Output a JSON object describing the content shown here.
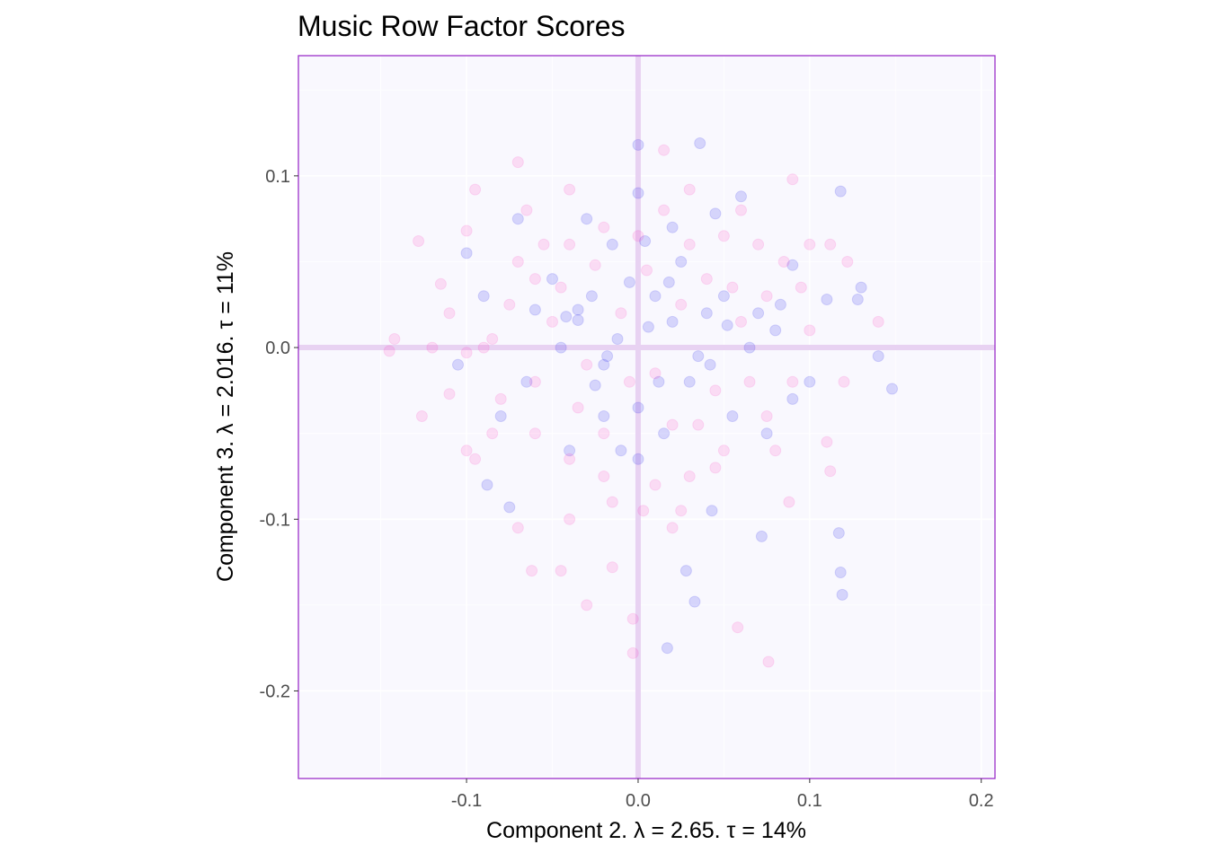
{
  "chart_data": {
    "type": "scatter",
    "title": "Music Row Factor Scores",
    "xlabel": "Component 2.   λ = 2.65.  τ = 14%",
    "ylabel": "Component 3.   λ = 2.016.  τ = 11%",
    "xlim": [
      -0.198,
      0.208
    ],
    "ylim": [
      -0.251,
      0.17
    ],
    "x_ticks": [
      -0.1,
      0.0,
      0.1,
      0.2
    ],
    "x_tick_labels": [
      "-0.1",
      "0.0",
      "0.1",
      "0.2"
    ],
    "y_ticks": [
      -0.2,
      -0.1,
      0.0,
      0.1
    ],
    "y_tick_labels": [
      "-0.2",
      "-0.1",
      "0.0",
      "0.1"
    ],
    "grid": true,
    "legend": "none",
    "colors": {
      "panel_background": "#f9f8fe",
      "panel_border": "#9b30c9",
      "gridline": "#ffffff",
      "origin_lines": "#e8d2f2",
      "series_blue": "#3333ee",
      "series_pink": "#ff33bb"
    },
    "series": [
      {
        "color": "#3333ee",
        "opacity": 0.18,
        "points": [
          [
            0.0,
            0.118
          ],
          [
            0.036,
            0.119
          ],
          [
            0.118,
            0.091
          ],
          [
            0.042,
            -0.01
          ],
          [
            -0.035,
            0.016
          ],
          [
            -0.06,
            0.022
          ],
          [
            -0.02,
            -0.01
          ],
          [
            0.01,
            0.03
          ],
          [
            0.05,
            0.03
          ],
          [
            0.07,
            0.02
          ],
          [
            -0.08,
            -0.04
          ],
          [
            -0.09,
            0.03
          ],
          [
            0.09,
            -0.03
          ],
          [
            0.13,
            0.035
          ],
          [
            0.14,
            -0.005
          ],
          [
            0.148,
            -0.024
          ],
          [
            0.117,
            -0.108
          ],
          [
            0.118,
            -0.131
          ],
          [
            0.119,
            -0.144
          ],
          [
            0.072,
            -0.11
          ],
          [
            0.028,
            -0.13
          ],
          [
            0.033,
            -0.148
          ],
          [
            0.017,
            -0.175
          ],
          [
            0.043,
            -0.095
          ],
          [
            0.0,
            -0.065
          ],
          [
            -0.02,
            -0.04
          ],
          [
            -0.04,
            -0.06
          ],
          [
            -0.075,
            -0.093
          ],
          [
            -0.088,
            -0.08
          ],
          [
            -0.1,
            0.055
          ],
          [
            -0.07,
            0.075
          ],
          [
            -0.03,
            0.075
          ],
          [
            0.0,
            0.09
          ],
          [
            0.02,
            0.07
          ],
          [
            0.045,
            0.078
          ],
          [
            0.06,
            0.088
          ],
          [
            0.09,
            0.048
          ],
          [
            0.11,
            0.028
          ],
          [
            0.128,
            0.028
          ],
          [
            0.083,
            0.025
          ],
          [
            -0.012,
            0.005
          ],
          [
            -0.018,
            -0.005
          ],
          [
            0.012,
            -0.02
          ],
          [
            0.02,
            0.015
          ],
          [
            -0.035,
            0.022
          ],
          [
            -0.005,
            0.038
          ],
          [
            0.03,
            -0.02
          ],
          [
            0.055,
            -0.04
          ],
          [
            0.065,
            0.0
          ],
          [
            -0.05,
            0.04
          ],
          [
            0.025,
            0.05
          ],
          [
            -0.045,
            0.0
          ],
          [
            0.004,
            0.062
          ],
          [
            -0.015,
            0.06
          ],
          [
            0.04,
            0.02
          ],
          [
            -0.027,
            0.03
          ],
          [
            0.075,
            -0.05
          ],
          [
            -0.065,
            -0.02
          ],
          [
            0.08,
            0.01
          ],
          [
            -0.105,
            -0.01
          ],
          [
            0.1,
            -0.02
          ],
          [
            0.015,
            -0.05
          ],
          [
            -0.01,
            -0.06
          ],
          [
            0.035,
            -0.005
          ],
          [
            -0.025,
            -0.022
          ],
          [
            0.006,
            0.012
          ],
          [
            -0.042,
            0.018
          ],
          [
            0.052,
            0.013
          ],
          [
            0.018,
            0.038
          ],
          [
            0.0,
            -0.035
          ]
        ]
      },
      {
        "color": "#ff33bb",
        "opacity": 0.15,
        "points": [
          [
            0.015,
            0.115
          ],
          [
            -0.07,
            0.108
          ],
          [
            -0.128,
            0.062
          ],
          [
            -0.142,
            0.005
          ],
          [
            -0.145,
            -0.002
          ],
          [
            -0.126,
            -0.04
          ],
          [
            -0.1,
            -0.06
          ],
          [
            -0.095,
            -0.065
          ],
          [
            -0.07,
            -0.105
          ],
          [
            -0.062,
            -0.13
          ],
          [
            -0.045,
            -0.13
          ],
          [
            -0.03,
            -0.15
          ],
          [
            -0.015,
            -0.128
          ],
          [
            -0.003,
            -0.158
          ],
          [
            -0.003,
            -0.178
          ],
          [
            0.058,
            -0.163
          ],
          [
            0.076,
            -0.183
          ],
          [
            0.003,
            -0.095
          ],
          [
            0.02,
            -0.105
          ],
          [
            0.045,
            -0.07
          ],
          [
            0.088,
            -0.09
          ],
          [
            0.11,
            -0.055
          ],
          [
            0.112,
            -0.072
          ],
          [
            0.14,
            0.015
          ],
          [
            0.122,
            0.05
          ],
          [
            0.112,
            0.06
          ],
          [
            0.09,
            0.098
          ],
          [
            0.03,
            0.092
          ],
          [
            -0.04,
            0.092
          ],
          [
            -0.095,
            0.092
          ],
          [
            -0.1,
            0.068
          ],
          [
            -0.115,
            0.037
          ],
          [
            -0.11,
            0.02
          ],
          [
            -0.1,
            -0.003
          ],
          [
            -0.11,
            -0.027
          ],
          [
            -0.085,
            0.005
          ],
          [
            -0.06,
            0.04
          ],
          [
            -0.04,
            0.06
          ],
          [
            -0.02,
            0.07
          ],
          [
            0.0,
            0.065
          ],
          [
            0.03,
            0.06
          ],
          [
            0.05,
            0.065
          ],
          [
            0.07,
            0.06
          ],
          [
            0.085,
            0.05
          ],
          [
            0.095,
            0.035
          ],
          [
            0.1,
            0.01
          ],
          [
            0.09,
            -0.02
          ],
          [
            0.075,
            -0.04
          ],
          [
            0.05,
            -0.06
          ],
          [
            0.03,
            -0.075
          ],
          [
            0.01,
            -0.08
          ],
          [
            -0.02,
            -0.075
          ],
          [
            -0.04,
            -0.065
          ],
          [
            -0.06,
            -0.05
          ],
          [
            -0.08,
            -0.03
          ],
          [
            -0.09,
            0.0
          ],
          [
            -0.075,
            0.025
          ],
          [
            -0.05,
            0.015
          ],
          [
            -0.03,
            -0.01
          ],
          [
            -0.01,
            0.02
          ],
          [
            0.01,
            -0.015
          ],
          [
            0.025,
            0.025
          ],
          [
            0.045,
            -0.025
          ],
          [
            0.06,
            0.015
          ],
          [
            -0.06,
            -0.02
          ],
          [
            -0.045,
            0.035
          ],
          [
            0.005,
            0.045
          ],
          [
            0.02,
            -0.045
          ],
          [
            -0.02,
            -0.05
          ],
          [
            0.04,
            0.04
          ],
          [
            -0.035,
            -0.035
          ],
          [
            0.065,
            -0.02
          ],
          [
            -0.055,
            0.06
          ],
          [
            0.015,
            0.08
          ],
          [
            -0.015,
            -0.09
          ],
          [
            0.055,
            0.035
          ],
          [
            -0.07,
            0.05
          ],
          [
            0.075,
            0.03
          ],
          [
            -0.025,
            0.048
          ],
          [
            0.035,
            -0.045
          ],
          [
            -0.085,
            -0.05
          ],
          [
            0.08,
            -0.06
          ],
          [
            -0.065,
            0.08
          ],
          [
            0.06,
            0.08
          ],
          [
            -0.005,
            -0.02
          ],
          [
            0.1,
            0.06
          ],
          [
            -0.12,
            0.0
          ],
          [
            0.12,
            -0.02
          ],
          [
            -0.04,
            -0.1
          ],
          [
            0.025,
            -0.095
          ]
        ]
      }
    ]
  }
}
